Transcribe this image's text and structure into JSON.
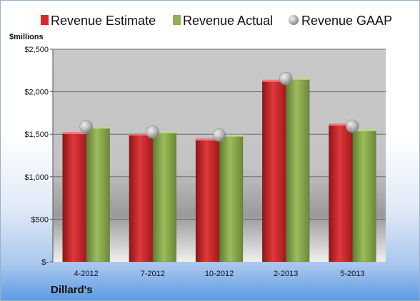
{
  "chart_data": {
    "type": "bar",
    "unit_label": "$millions",
    "company": "Dillard's",
    "categories": [
      "4-2012",
      "7-2012",
      "10-2012",
      "2-2013",
      "5-2013"
    ],
    "series": [
      {
        "name": "Revenue Estimate",
        "kind": "bar",
        "color": "#d42a2e",
        "values": [
          1510,
          1495,
          1435,
          2125,
          1610
        ]
      },
      {
        "name": "Revenue Actual",
        "kind": "bar",
        "color": "#8fb04e",
        "values": [
          1575,
          1520,
          1480,
          2150,
          1545
        ]
      },
      {
        "name": "Revenue GAAP",
        "kind": "marker",
        "color": "#b0b0b0",
        "values": [
          1590,
          1525,
          1490,
          2155,
          1595
        ]
      }
    ],
    "ylim": [
      0,
      2500
    ],
    "y_ticks": [
      0,
      500,
      1000,
      1500,
      2000,
      2500
    ],
    "y_tick_labels": [
      "$-",
      "$500",
      "$1,000",
      "$1,500",
      "$2,000",
      "$2,500"
    ],
    "grid": true,
    "legend": "top"
  }
}
